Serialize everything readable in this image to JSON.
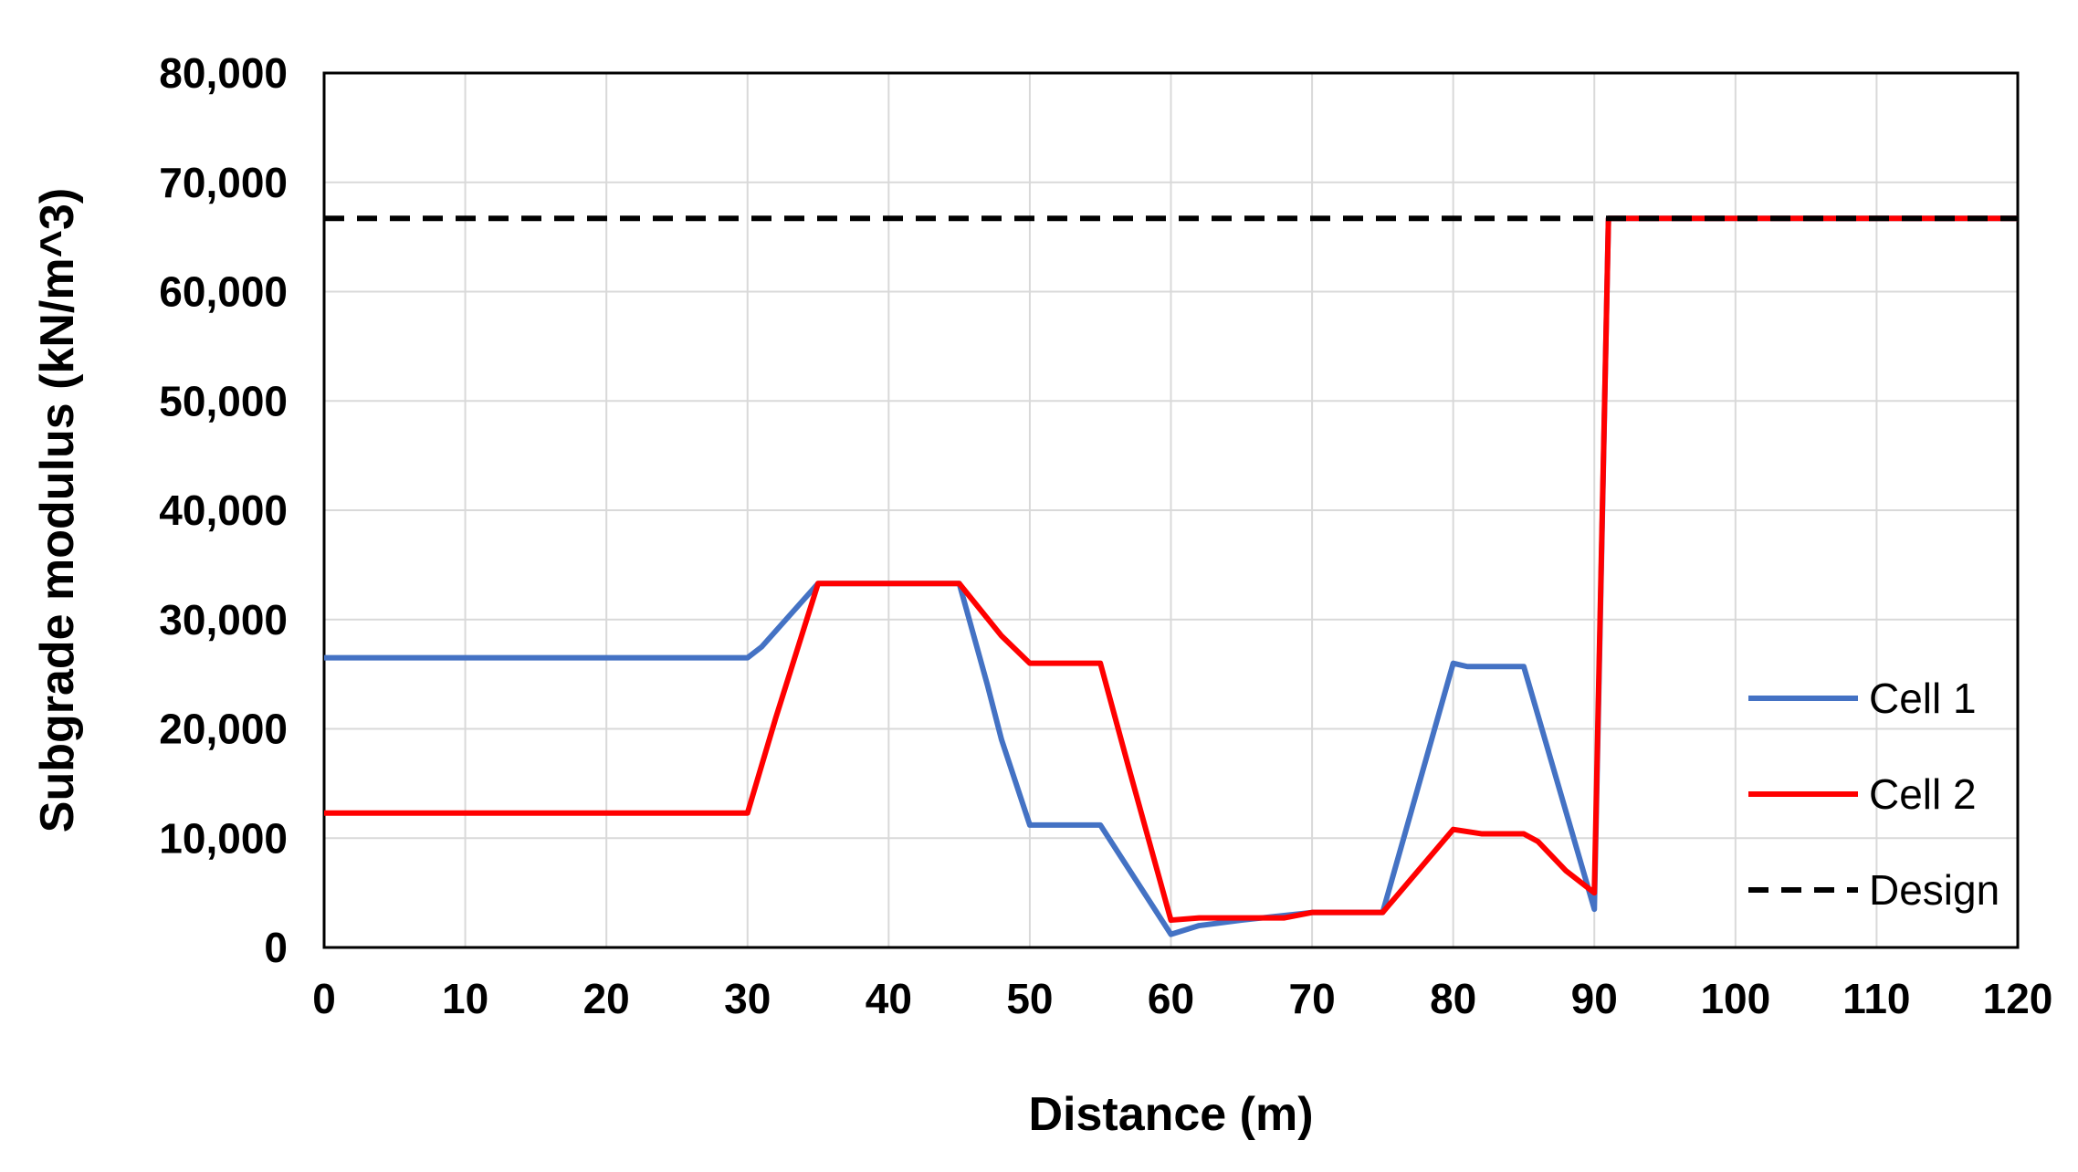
{
  "chart_data": {
    "type": "line",
    "title": "",
    "xlabel": "Distance (m)",
    "ylabel": "Subgrade modulus (kN/m^3)",
    "xlim": [
      0,
      120
    ],
    "ylim": [
      0,
      80000
    ],
    "x_ticks": [
      "0",
      "10",
      "20",
      "30",
      "40",
      "50",
      "60",
      "70",
      "80",
      "90",
      "100",
      "110",
      "120"
    ],
    "y_ticks": [
      "0",
      "10,000",
      "20,000",
      "30,000",
      "40,000",
      "50,000",
      "60,000",
      "70,000",
      "80,000"
    ],
    "x_tick_values": [
      0,
      10,
      20,
      30,
      40,
      50,
      60,
      70,
      80,
      90,
      100,
      110,
      120
    ],
    "y_tick_values": [
      0,
      10000,
      20000,
      30000,
      40000,
      50000,
      60000,
      70000,
      80000
    ],
    "grid": true,
    "legend_position": "right",
    "series": [
      {
        "name": "Cell 1",
        "color": "#4472C4",
        "style": "solid",
        "x": [
          0,
          30,
          31,
          35,
          45,
          47,
          48,
          50,
          55,
          60,
          62,
          65,
          70,
          75,
          80,
          81,
          85,
          90,
          91,
          120
        ],
        "y": [
          26500,
          26500,
          27500,
          33300,
          33300,
          24000,
          19000,
          11200,
          11200,
          1200,
          2000,
          2500,
          3200,
          3200,
          26000,
          25700,
          25700,
          3500,
          66700,
          66700
        ]
      },
      {
        "name": "Cell 2",
        "color": "#FF0000",
        "style": "solid",
        "x": [
          0,
          30,
          32,
          35,
          45,
          48,
          50,
          55,
          57,
          60,
          62,
          65,
          68,
          70,
          75,
          80,
          82,
          85,
          86,
          88,
          90,
          91,
          120
        ],
        "y": [
          12300,
          12300,
          21000,
          33300,
          33300,
          28500,
          26000,
          26000,
          16500,
          2500,
          2700,
          2700,
          2700,
          3200,
          3200,
          10800,
          10400,
          10400,
          9700,
          7000,
          5000,
          66700,
          66700
        ]
      },
      {
        "name": "Design",
        "color": "#000000",
        "style": "dashed",
        "x": [
          0,
          120
        ],
        "y": [
          66700,
          66700
        ]
      }
    ]
  }
}
